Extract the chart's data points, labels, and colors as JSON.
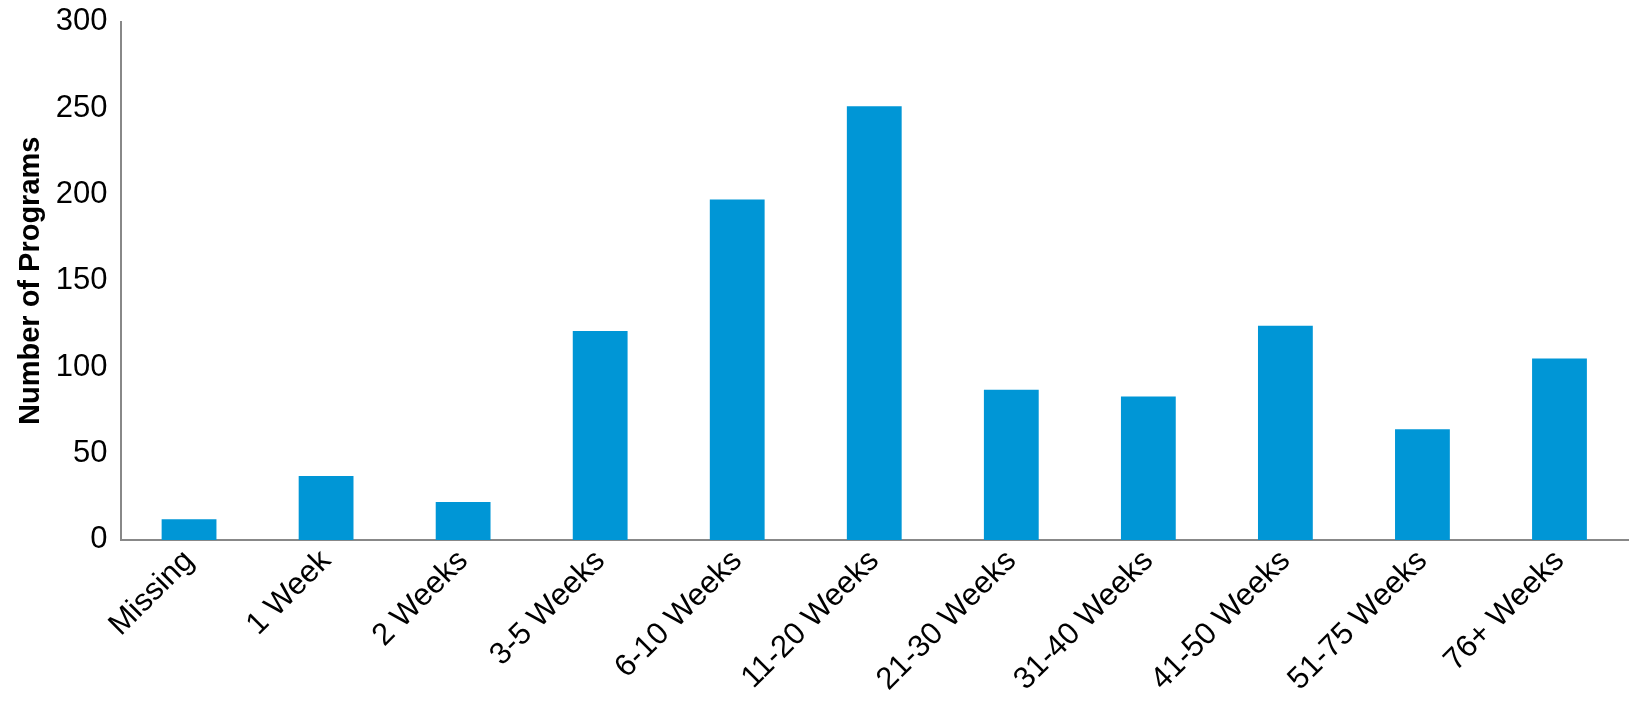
{
  "chart_data": {
    "type": "bar",
    "ylabel": "Number of Programs",
    "categories": [
      "Missing",
      "1 Week",
      "2 Weeks",
      "3-5 Weeks",
      "6-10 Weeks",
      "11-20 Weeks",
      "21-30 Weeks",
      "31-40 Weeks",
      "41-50 Weeks",
      "51-75 Weeks",
      "76+ Weeks"
    ],
    "values": [
      12,
      37,
      22,
      121,
      197,
      251,
      87,
      83,
      124,
      64,
      105
    ],
    "color": "#0096d6",
    "ylim": [
      0,
      300
    ],
    "yticks": [
      0,
      50,
      100,
      150,
      200,
      250,
      300
    ],
    "grid": false,
    "legend": false
  }
}
